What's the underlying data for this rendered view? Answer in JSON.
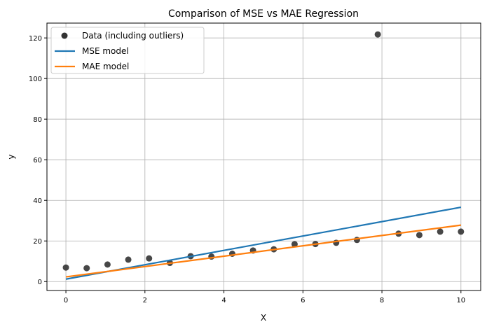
{
  "chart_data": {
    "type": "scatter",
    "title": "Comparison of MSE vs MAE Regression",
    "xlabel": "X",
    "ylabel": "y",
    "xlim": [
      -0.48,
      10.5
    ],
    "ylim": [
      -4.4,
      127.3
    ],
    "xticks": [
      0,
      2,
      4,
      6,
      8,
      10
    ],
    "yticks": [
      0,
      20,
      40,
      60,
      80,
      100,
      120
    ],
    "grid": true,
    "legend_position": "top-left",
    "series": [
      {
        "name": "Data (including outliers)",
        "kind": "scatter",
        "color": "#333333",
        "x": [
          0,
          0.526,
          1.053,
          1.579,
          2.105,
          2.632,
          3.158,
          3.684,
          4.211,
          4.737,
          5.263,
          5.789,
          6.316,
          6.842,
          7.368,
          7.895,
          8.421,
          8.947,
          9.474,
          10
        ],
        "y": [
          6.9,
          6.6,
          8.4,
          10.8,
          11.4,
          9.2,
          12.5,
          12.3,
          13.7,
          15.3,
          15.9,
          18.4,
          18.5,
          19.1,
          20.5,
          121.7,
          23.6,
          22.9,
          24.6,
          24.6
        ]
      },
      {
        "name": "MSE model",
        "kind": "line",
        "color": "#1f77b4",
        "x": [
          0,
          10
        ],
        "y": [
          1.2,
          36.6
        ]
      },
      {
        "name": "MAE model",
        "kind": "line",
        "color": "#ff7f0e",
        "x": [
          0,
          10
        ],
        "y": [
          2.3,
          27.8
        ]
      }
    ]
  }
}
